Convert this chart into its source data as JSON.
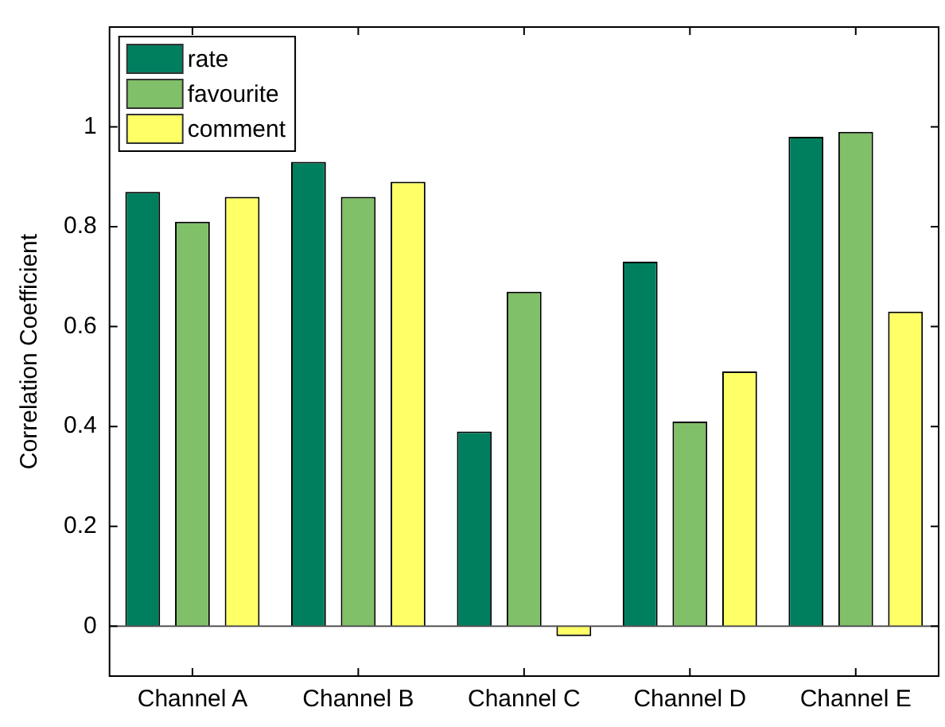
{
  "chart_data": {
    "type": "bar",
    "ylabel": "Correlation Coefficient",
    "categories": [
      "Channel A",
      "Channel B",
      "Channel C",
      "Channel D",
      "Channel E"
    ],
    "series": [
      {
        "name": "rate",
        "color": "#007f5f",
        "values": [
          0.87,
          0.93,
          0.39,
          0.73,
          0.98
        ]
      },
      {
        "name": "favourite",
        "color": "#80c068",
        "values": [
          0.81,
          0.86,
          0.67,
          0.41,
          0.99
        ]
      },
      {
        "name": "comment",
        "color": "#ffff66",
        "values": [
          0.86,
          0.89,
          -0.02,
          0.51,
          0.63
        ]
      }
    ],
    "ylim": [
      -0.1,
      1.2
    ],
    "yticks": [
      0,
      0.2,
      0.4,
      0.6,
      0.8,
      1
    ],
    "ref_lines": [
      {
        "axis": "y",
        "value": 0
      }
    ],
    "grid": false,
    "legend": "top left"
  }
}
